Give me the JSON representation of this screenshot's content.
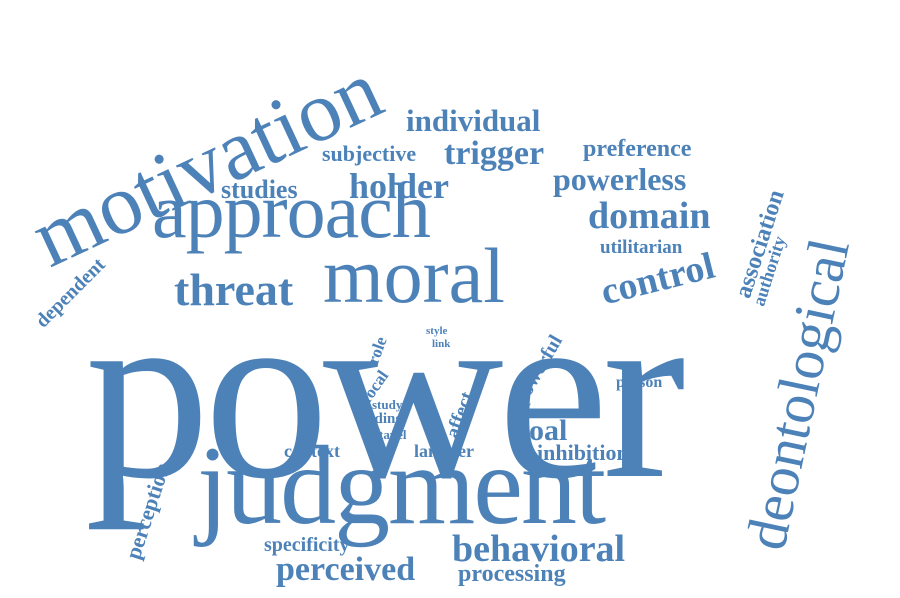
{
  "color": "#4d82b8",
  "words": {
    "power": "power",
    "judgment": "judgment",
    "motivation": "motivation",
    "approach": "approach",
    "moral": "moral",
    "deontological": "deontological",
    "threat": "threat",
    "domain": "domain",
    "control": "control",
    "holder": "holder",
    "trigger": "trigger",
    "powerless": "powerless",
    "individual": "individual",
    "studies": "studies",
    "subjective": "subjective",
    "preference": "preference",
    "utilitarian": "utilitarian",
    "association": "association",
    "authority": "authority",
    "dependent": "dependent",
    "behavioral": "behavioral",
    "perceived": "perceived",
    "processing": "processing",
    "specificity": "specificity",
    "perception": "perception",
    "goal": "goal",
    "inhibition": "inhibition",
    "lammer": "lammer",
    "context": "context",
    "stapel": "stapel",
    "finding": "finding",
    "study": "study",
    "focal": "focal",
    "role": "role",
    "style": "style",
    "link": "link",
    "affect": "affect",
    "powerful": "powerful",
    "person": "person"
  }
}
